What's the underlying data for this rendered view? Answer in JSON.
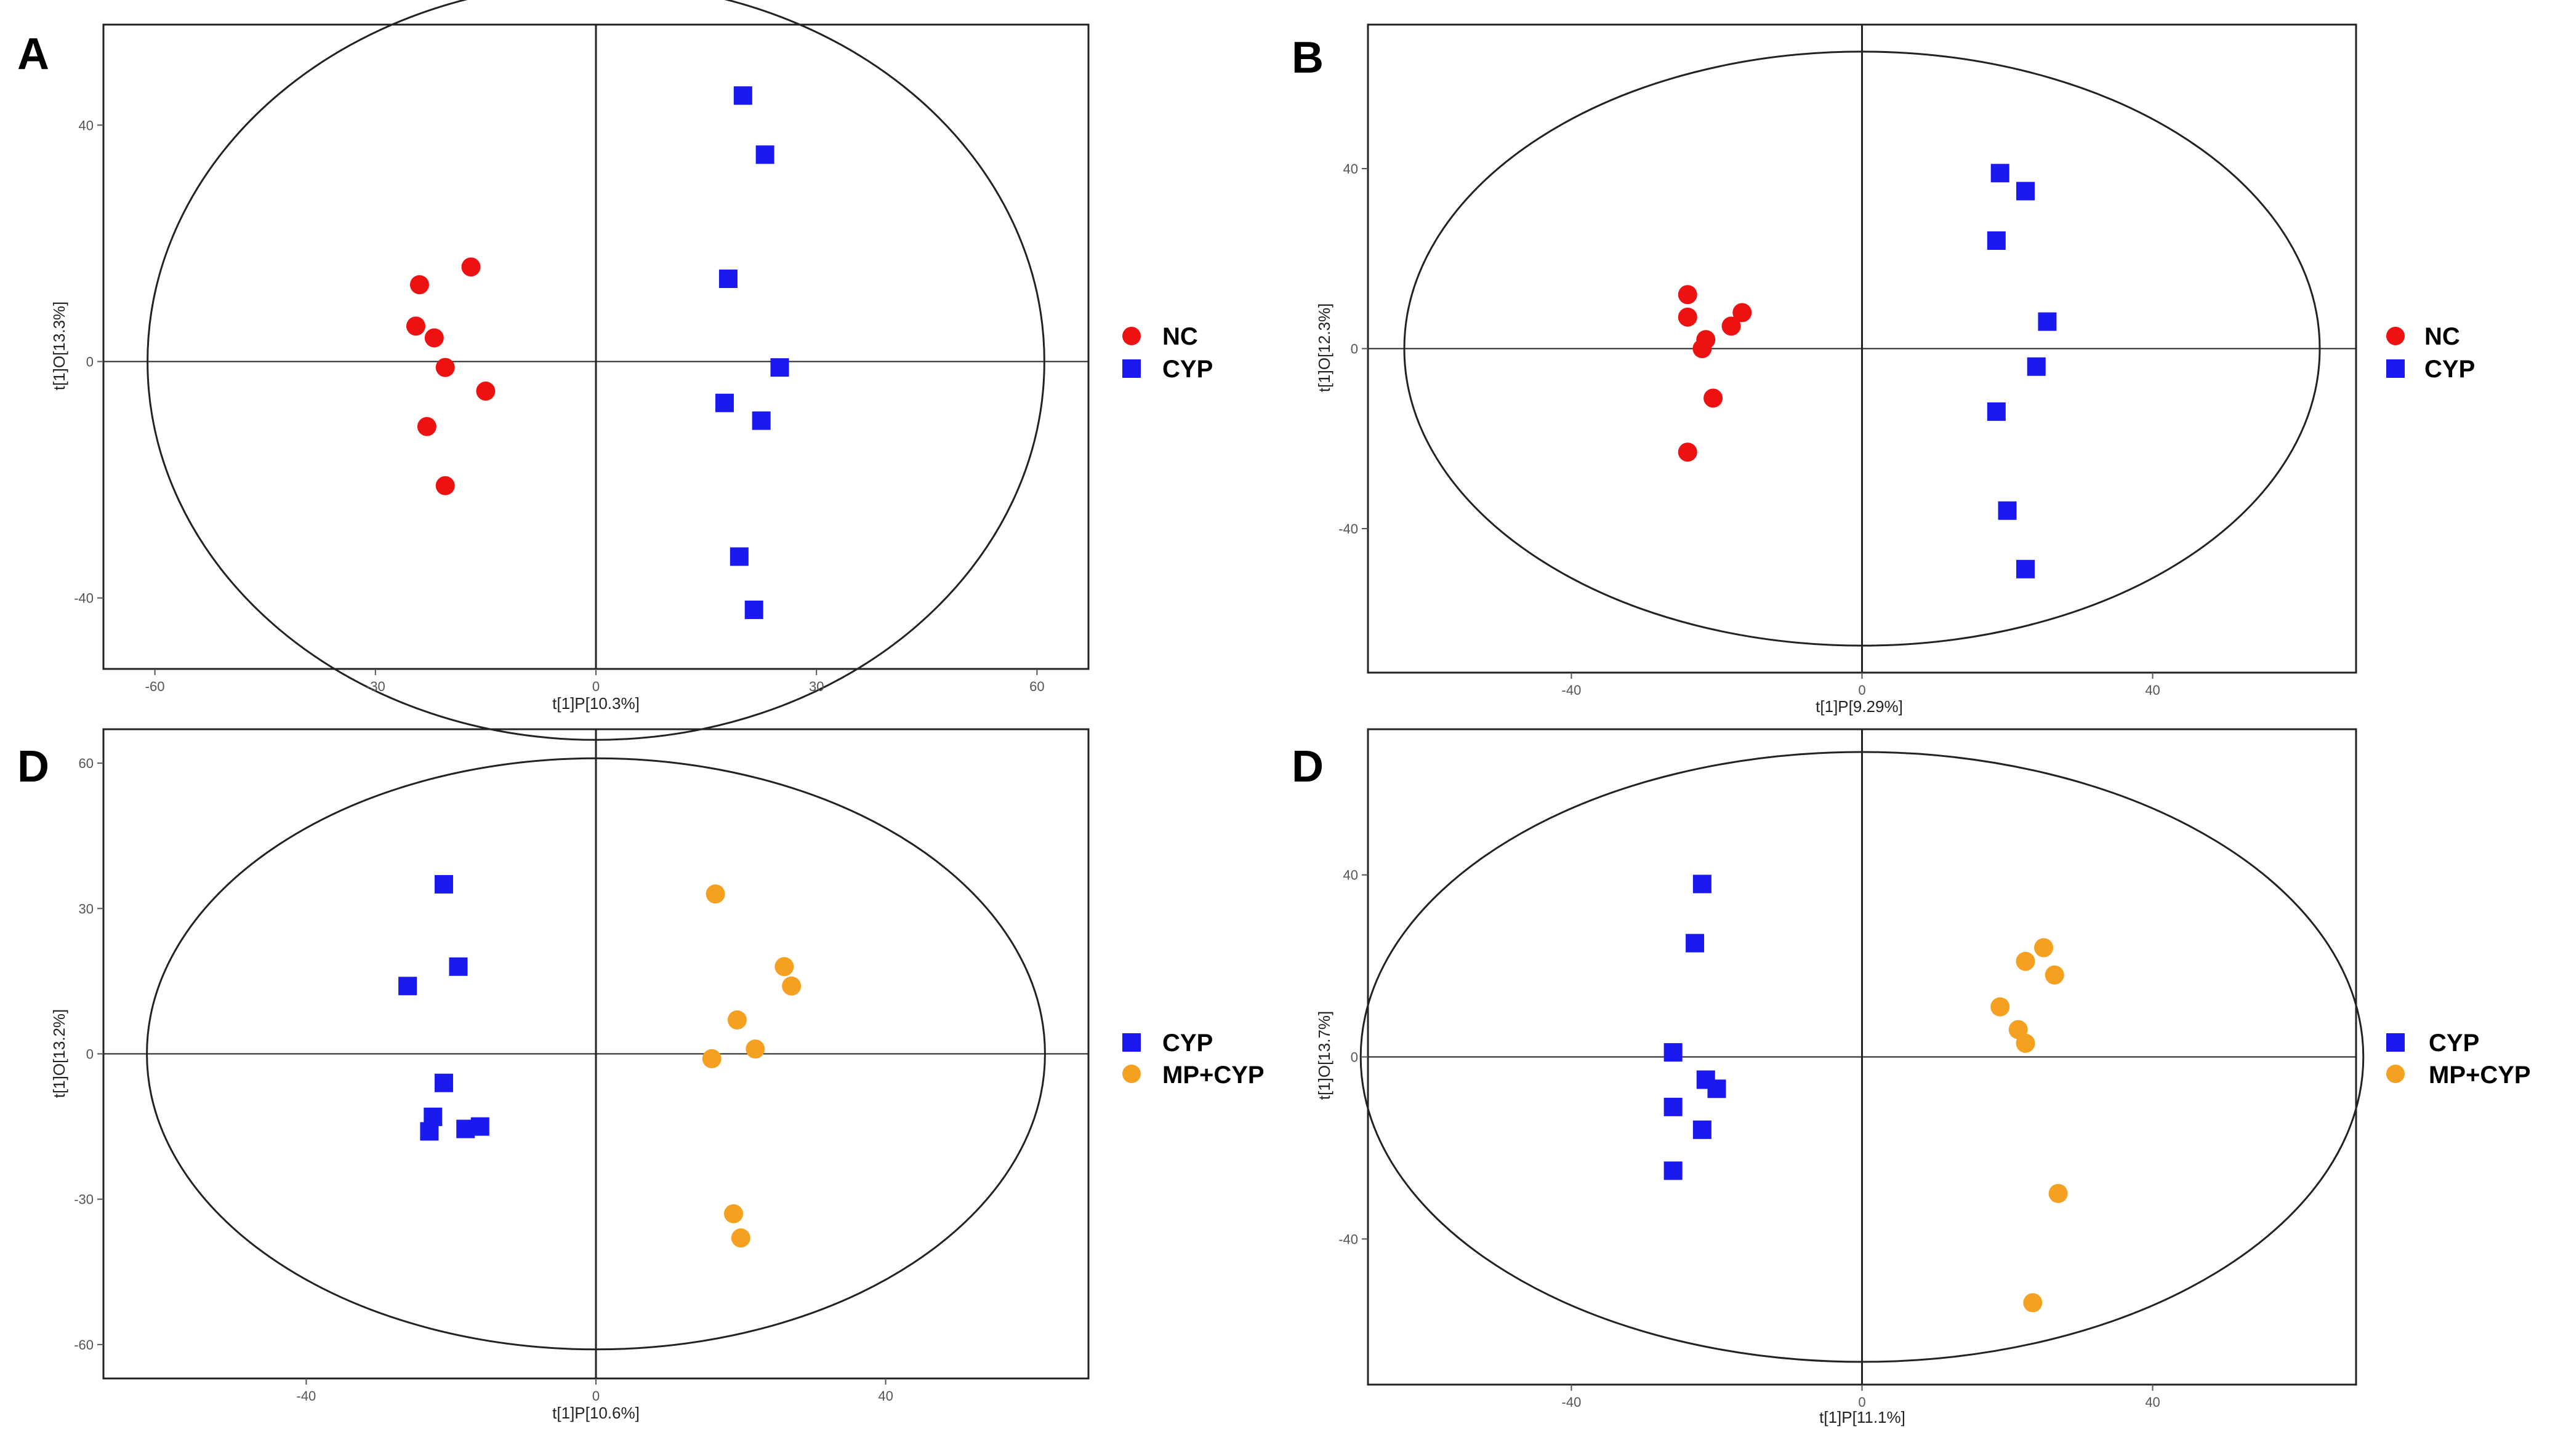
{
  "colors": {
    "NC": "#ee1111",
    "CYP": "#1a1aee",
    "MP+CYP": "#f5a020",
    "axis": "#222222",
    "tick": "#555555"
  },
  "chart_data": [
    {
      "panel": "A",
      "type": "scatter",
      "xlabel": "t[1]P[10.3%]",
      "ylabel": "t[1]O[13.3%]",
      "xlim": [
        -67,
        67
      ],
      "ylim": [
        -52,
        57
      ],
      "xticks": [
        -60,
        -30,
        0,
        30,
        60
      ],
      "yticks": [
        -40,
        0,
        40
      ],
      "ellipse": {
        "rx": 61,
        "ry": 64
      },
      "series": [
        {
          "name": "NC",
          "marker": "circle",
          "points": [
            [
              -24,
              13
            ],
            [
              -17,
              16
            ],
            [
              -22,
              4
            ],
            [
              -24.5,
              6
            ],
            [
              -20.5,
              -1
            ],
            [
              -15,
              -5
            ],
            [
              -23,
              -11
            ],
            [
              -20.5,
              -21
            ]
          ]
        },
        {
          "name": "CYP",
          "marker": "square",
          "points": [
            [
              20,
              45
            ],
            [
              23,
              35
            ],
            [
              18,
              14
            ],
            [
              25,
              -1
            ],
            [
              17.5,
              -7
            ],
            [
              22.5,
              -10
            ],
            [
              19.5,
              -33
            ],
            [
              21.5,
              -42
            ]
          ]
        }
      ]
    },
    {
      "panel": "B",
      "type": "scatter",
      "xlabel": "t[1]P[9.29%]",
      "ylabel": "t[1]O[12.3%]",
      "xlim": [
        -68,
        68
      ],
      "ylim": [
        -72,
        72
      ],
      "xticks": [
        -40,
        0,
        40
      ],
      "yticks": [
        -40,
        0,
        40
      ],
      "ellipse": {
        "rx": 63,
        "ry": 66
      },
      "series": [
        {
          "name": "NC",
          "marker": "circle",
          "points": [
            [
              -24,
              12
            ],
            [
              -24,
              7
            ],
            [
              -21.5,
              2
            ],
            [
              -22,
              0
            ],
            [
              -18,
              5
            ],
            [
              -16.5,
              8
            ],
            [
              -20.5,
              -11
            ],
            [
              -24,
              -23
            ]
          ]
        },
        {
          "name": "CYP",
          "marker": "square",
          "points": [
            [
              19,
              39
            ],
            [
              22.5,
              35
            ],
            [
              18.5,
              24
            ],
            [
              25.5,
              6
            ],
            [
              24,
              -4
            ],
            [
              18.5,
              -14
            ],
            [
              20,
              -36
            ],
            [
              22.5,
              -49
            ]
          ]
        }
      ]
    },
    {
      "panel": "D",
      "type": "scatter",
      "xlabel": "t[1]P[10.6%]",
      "ylabel": "t[1]O[13.2%]",
      "xlim": [
        -68,
        68
      ],
      "ylim": [
        -67,
        67
      ],
      "xticks": [
        -40,
        0,
        40
      ],
      "yticks": [
        -60,
        -30,
        0,
        30,
        60
      ],
      "ellipse": {
        "rx": 62,
        "ry": 61
      },
      "series": [
        {
          "name": "CYP",
          "marker": "square",
          "points": [
            [
              -21,
              35
            ],
            [
              -19,
              18
            ],
            [
              -26,
              14
            ],
            [
              -21,
              -6
            ],
            [
              -22.5,
              -13
            ],
            [
              -23,
              -16
            ],
            [
              -18,
              -15.5
            ],
            [
              -16,
              -15
            ]
          ]
        },
        {
          "name": "MP+CYP",
          "marker": "circle",
          "points": [
            [
              16.5,
              33
            ],
            [
              26,
              18
            ],
            [
              27,
              14
            ],
            [
              19.5,
              7
            ],
            [
              22,
              1
            ],
            [
              16,
              -1
            ],
            [
              19,
              -33
            ],
            [
              20,
              -38
            ]
          ]
        }
      ]
    },
    {
      "panel": "D",
      "type": "scatter",
      "xlabel": "t[1]P[11.1%]",
      "ylabel": "t[1]O[13.7%]",
      "xlim": [
        -68,
        68
      ],
      "ylim": [
        -72,
        72
      ],
      "xticks": [
        -40,
        0,
        40
      ],
      "yticks": [
        -40,
        0,
        40
      ],
      "ellipse": {
        "rx": 69,
        "ry": 67
      },
      "series": [
        {
          "name": "CYP",
          "marker": "square",
          "points": [
            [
              -22,
              38
            ],
            [
              -23,
              25
            ],
            [
              -26,
              1
            ],
            [
              -21.5,
              -5
            ],
            [
              -20,
              -7
            ],
            [
              -26,
              -11
            ],
            [
              -22,
              -16
            ],
            [
              -26,
              -25
            ]
          ]
        },
        {
          "name": "MP+CYP",
          "marker": "circle",
          "points": [
            [
              25,
              24
            ],
            [
              22.5,
              21
            ],
            [
              26.5,
              18
            ],
            [
              19,
              11
            ],
            [
              21.5,
              6
            ],
            [
              22.5,
              3
            ],
            [
              27,
              -30
            ],
            [
              23.5,
              -54
            ]
          ]
        }
      ]
    }
  ],
  "legends": [
    {
      "items": [
        "NC",
        "CYP"
      ]
    },
    {
      "items": [
        "NC",
        "CYP"
      ]
    },
    {
      "items": [
        "CYP",
        "MP+CYP"
      ]
    },
    {
      "items": [
        "CYP",
        "MP+CYP"
      ]
    }
  ]
}
